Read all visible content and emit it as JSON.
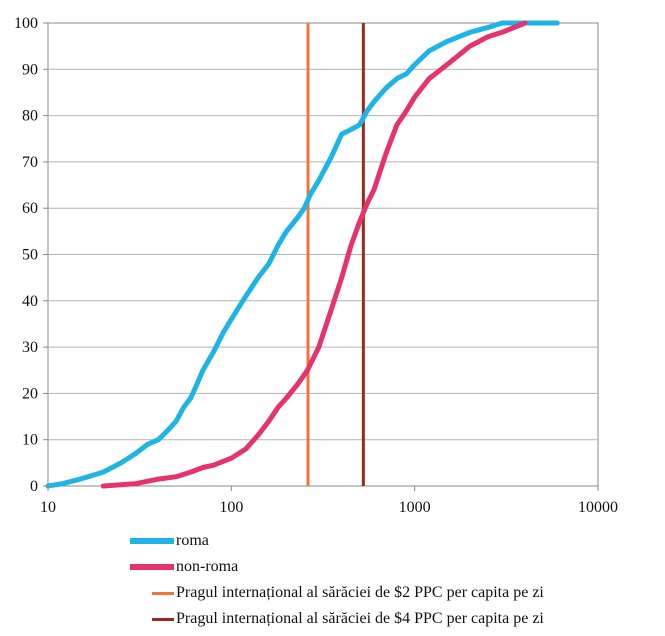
{
  "chart_data": {
    "type": "line",
    "x_scale": "log",
    "xlim": [
      10,
      10000
    ],
    "ylim": [
      0,
      100
    ],
    "x_ticks": [
      "10",
      "100",
      "1000",
      "10000"
    ],
    "y_ticks": [
      "0",
      "10",
      "20",
      "30",
      "40",
      "50",
      "60",
      "70",
      "80",
      "90",
      "100"
    ],
    "grid": "horizontal",
    "legend_position": "bottom",
    "series": [
      {
        "name": "roma",
        "color": "#1EB4E6",
        "points": [
          [
            10,
            0
          ],
          [
            12,
            0.5
          ],
          [
            15,
            1.5
          ],
          [
            20,
            3
          ],
          [
            25,
            5
          ],
          [
            30,
            7
          ],
          [
            35,
            9
          ],
          [
            40,
            10
          ],
          [
            45,
            12
          ],
          [
            50,
            14
          ],
          [
            55,
            17
          ],
          [
            60,
            19
          ],
          [
            65,
            22
          ],
          [
            70,
            25
          ],
          [
            80,
            29
          ],
          [
            90,
            33
          ],
          [
            100,
            36
          ],
          [
            120,
            41
          ],
          [
            140,
            45
          ],
          [
            160,
            48
          ],
          [
            180,
            52
          ],
          [
            200,
            55
          ],
          [
            230,
            58
          ],
          [
            250,
            60
          ],
          [
            270,
            63
          ],
          [
            300,
            66
          ],
          [
            350,
            71
          ],
          [
            400,
            76
          ],
          [
            450,
            77
          ],
          [
            500,
            78
          ],
          [
            550,
            81
          ],
          [
            600,
            83
          ],
          [
            700,
            86
          ],
          [
            800,
            88
          ],
          [
            900,
            89
          ],
          [
            1000,
            91
          ],
          [
            1200,
            94
          ],
          [
            1500,
            96
          ],
          [
            2000,
            98
          ],
          [
            2500,
            99
          ],
          [
            3000,
            100
          ],
          [
            6000,
            100
          ]
        ]
      },
      {
        "name": "non-roma",
        "color": "#E6326E",
        "points": [
          [
            20,
            0
          ],
          [
            30,
            0.5
          ],
          [
            40,
            1.5
          ],
          [
            50,
            2
          ],
          [
            60,
            3
          ],
          [
            70,
            4
          ],
          [
            80,
            4.5
          ],
          [
            100,
            6
          ],
          [
            120,
            8
          ],
          [
            140,
            11
          ],
          [
            160,
            14
          ],
          [
            180,
            17
          ],
          [
            200,
            19
          ],
          [
            230,
            22
          ],
          [
            260,
            25
          ],
          [
            300,
            30
          ],
          [
            350,
            38
          ],
          [
            400,
            45
          ],
          [
            450,
            52
          ],
          [
            500,
            57
          ],
          [
            550,
            61
          ],
          [
            600,
            64
          ],
          [
            700,
            72
          ],
          [
            800,
            78
          ],
          [
            900,
            81
          ],
          [
            1000,
            84
          ],
          [
            1200,
            88
          ],
          [
            1500,
            91
          ],
          [
            2000,
            95
          ],
          [
            2500,
            97
          ],
          [
            3000,
            98
          ],
          [
            4000,
            100
          ]
        ]
      },
      {
        "name": "Pragul internațional al sărăciei de $2 PPC per capita pe zi",
        "color": "#F2743A",
        "type": "vline",
        "x": 262
      },
      {
        "name": "Pragul internațional al sărăciei de  $4 PPC per capita pe zi",
        "color": "#9A2A1A",
        "type": "vline",
        "x": 525
      }
    ]
  }
}
